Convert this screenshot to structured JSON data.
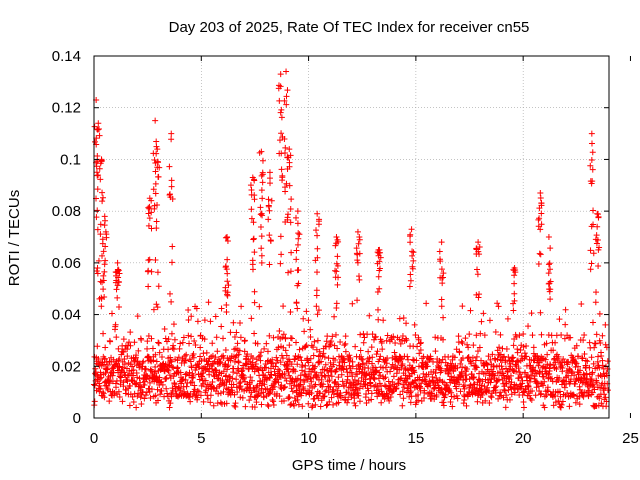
{
  "chart_data": {
    "type": "scatter",
    "title": "Day 203 of 2025, Rate Of TEC Index for receiver cn55",
    "xlabel": "GPS time / hours",
    "ylabel": "ROTI / TECUs",
    "xlim": [
      0,
      24
    ],
    "ylim": [
      0,
      0.14
    ],
    "xticks": [
      0,
      5,
      10,
      15,
      20,
      25
    ],
    "yticks": [
      0,
      0.02,
      0.04,
      0.06,
      0.08,
      0.1,
      0.12,
      0.14
    ],
    "xtick_labels": [
      "0",
      "5",
      "10",
      "15",
      "20",
      "25"
    ],
    "ytick_labels": [
      "0",
      "0.02",
      "0.04",
      "0.06",
      "0.08",
      "0.1",
      "0.12",
      "0.14"
    ],
    "grid": true,
    "marker": "+",
    "marker_color": "#ff0000",
    "series": [
      {
        "name": "ROTI",
        "x_start": 0.0,
        "x_end": 23.95,
        "n_points": 2300,
        "typical_range": [
          0.004,
          0.045
        ],
        "baseline": 0.016,
        "spikes": [
          {
            "x": 0.1,
            "peak": 0.123
          },
          {
            "x": 0.2,
            "peak": 0.114
          },
          {
            "x": 0.35,
            "peak": 0.1
          },
          {
            "x": 0.5,
            "peak": 0.078
          },
          {
            "x": 1.1,
            "peak": 0.06
          },
          {
            "x": 2.6,
            "peak": 0.085
          },
          {
            "x": 2.85,
            "peak": 0.115
          },
          {
            "x": 2.95,
            "peak": 0.104
          },
          {
            "x": 3.6,
            "peak": 0.11
          },
          {
            "x": 6.2,
            "peak": 0.07
          },
          {
            "x": 7.4,
            "peak": 0.093
          },
          {
            "x": 7.8,
            "peak": 0.103
          },
          {
            "x": 8.2,
            "peak": 0.095
          },
          {
            "x": 8.7,
            "peak": 0.133
          },
          {
            "x": 8.95,
            "peak": 0.134
          },
          {
            "x": 9.1,
            "peak": 0.104
          },
          {
            "x": 9.5,
            "peak": 0.08
          },
          {
            "x": 10.4,
            "peak": 0.079
          },
          {
            "x": 11.3,
            "peak": 0.07
          },
          {
            "x": 12.3,
            "peak": 0.072
          },
          {
            "x": 13.3,
            "peak": 0.065
          },
          {
            "x": 14.8,
            "peak": 0.073
          },
          {
            "x": 16.2,
            "peak": 0.068
          },
          {
            "x": 17.9,
            "peak": 0.068
          },
          {
            "x": 19.6,
            "peak": 0.058
          },
          {
            "x": 20.8,
            "peak": 0.087
          },
          {
            "x": 21.2,
            "peak": 0.07
          },
          {
            "x": 23.2,
            "peak": 0.11
          },
          {
            "x": 23.45,
            "peak": 0.079
          }
        ]
      }
    ]
  }
}
